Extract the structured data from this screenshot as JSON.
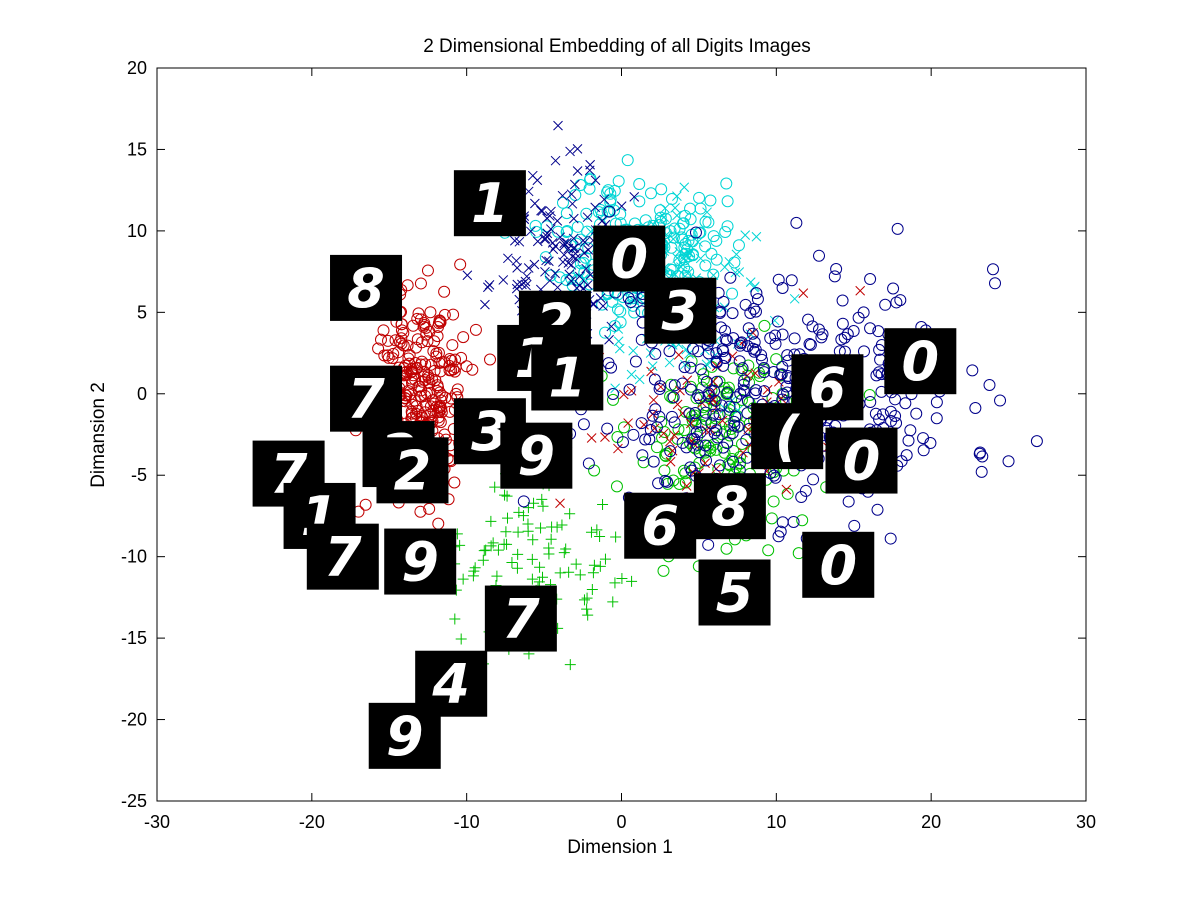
{
  "colors": {
    "blue": "#00008b",
    "cyan": "#00d5d5",
    "green": "#00c000",
    "red": "#c00000",
    "thumb_bg": "#000000",
    "thumb_fg": "#ffffff"
  },
  "chart_data": {
    "type": "scatter",
    "title": "2 Dimensional Embedding of all Digits Images",
    "xlabel": "Dimension 1",
    "ylabel": "Dimansion 2",
    "xlim": [
      -30,
      30
    ],
    "ylim": [
      -25,
      20
    ],
    "xticks": [
      -30,
      -20,
      -10,
      0,
      10,
      20,
      30
    ],
    "yticks": [
      -25,
      -20,
      -15,
      -10,
      -5,
      0,
      5,
      10,
      15,
      20
    ],
    "grid": false,
    "legend": "none",
    "series": [
      {
        "color": "blue",
        "marker": "circle",
        "cx": 10,
        "cy": 0,
        "sx": 11,
        "sy": 7,
        "count": 420,
        "seed": 11
      },
      {
        "color": "blue",
        "marker": "x",
        "cx": -4,
        "cy": 8,
        "sx": 4,
        "sy": 5,
        "count": 150,
        "seed": 23
      },
      {
        "color": "cyan",
        "marker": "circle",
        "cx": 1,
        "cy": 9,
        "sx": 5,
        "sy": 4,
        "count": 220,
        "seed": 37
      },
      {
        "color": "cyan",
        "marker": "x",
        "cx": 4,
        "cy": 6,
        "sx": 5,
        "sy": 5,
        "count": 110,
        "seed": 41
      },
      {
        "color": "green",
        "marker": "circle",
        "cx": 7,
        "cy": -3,
        "sx": 6,
        "sy": 6,
        "count": 170,
        "seed": 53
      },
      {
        "color": "green",
        "marker": "plus",
        "cx": -6,
        "cy": -11,
        "sx": 5,
        "sy": 5,
        "count": 110,
        "seed": 67
      },
      {
        "color": "red",
        "marker": "circle",
        "cx": -13,
        "cy": 0,
        "sx": 3,
        "sy": 6,
        "count": 280,
        "seed": 71
      },
      {
        "color": "red",
        "marker": "x",
        "cx": 6,
        "cy": -2,
        "sx": 7,
        "sy": 6,
        "count": 80,
        "seed": 83
      }
    ],
    "thumbnails": [
      {
        "label": "1",
        "x": -8.5,
        "y": 11.7
      },
      {
        "label": "0",
        "x": 0.5,
        "y": 8.3
      },
      {
        "label": "8",
        "x": -16.5,
        "y": 6.5
      },
      {
        "label": "3",
        "x": 3.8,
        "y": 5.1
      },
      {
        "label": "2",
        "x": -4.3,
        "y": 4.3
      },
      {
        "label": "1",
        "x": -5.7,
        "y": 2.2
      },
      {
        "label": "1",
        "x": -3.5,
        "y": 1.0
      },
      {
        "label": "6",
        "x": 13.3,
        "y": 0.4
      },
      {
        "label": "0",
        "x": 19.3,
        "y": 2.0
      },
      {
        "label": "7",
        "x": -16.5,
        "y": -0.3
      },
      {
        "label": "3",
        "x": -8.5,
        "y": -2.3
      },
      {
        "label": "9",
        "x": -5.5,
        "y": -3.8
      },
      {
        "label": "(",
        "x": 10.7,
        "y": -2.6
      },
      {
        "label": "0",
        "x": 15.5,
        "y": -4.1
      },
      {
        "label": "7",
        "x": -21.5,
        "y": -4.9
      },
      {
        "label": "2",
        "x": -14.4,
        "y": -3.7
      },
      {
        "label": "2",
        "x": -13.5,
        "y": -4.7
      },
      {
        "label": "1",
        "x": -19.5,
        "y": -7.5
      },
      {
        "label": "8",
        "x": 7.0,
        "y": -6.9
      },
      {
        "label": "6",
        "x": 2.5,
        "y": -8.1
      },
      {
        "label": "7",
        "x": -18.0,
        "y": -10.0
      },
      {
        "label": "9",
        "x": -13.0,
        "y": -10.3
      },
      {
        "label": "0",
        "x": 14.0,
        "y": -10.5
      },
      {
        "label": "5",
        "x": 7.3,
        "y": -12.2
      },
      {
        "label": "7",
        "x": -6.5,
        "y": -13.8
      },
      {
        "label": "4",
        "x": -11.0,
        "y": -17.8
      },
      {
        "label": "9",
        "x": -14.0,
        "y": -21.0
      }
    ]
  }
}
